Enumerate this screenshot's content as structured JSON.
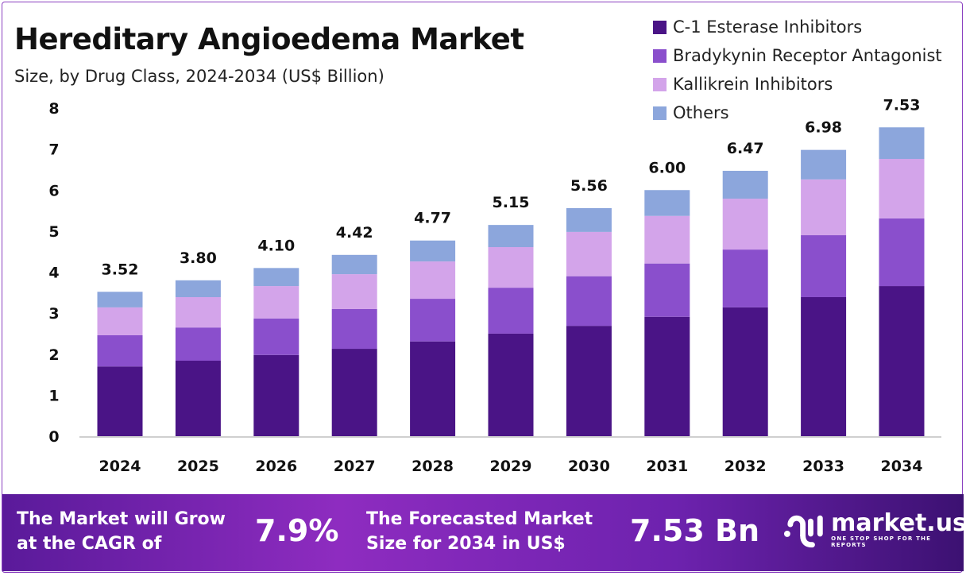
{
  "chart_data": {
    "type": "bar",
    "stacked": true,
    "title": "Hereditary Angioedema Market",
    "subtitle": "Size, by Drug Class, 2024-2034 (US$ Billion)",
    "categories": [
      "2024",
      "2025",
      "2026",
      "2027",
      "2028",
      "2029",
      "2030",
      "2031",
      "2032",
      "2033",
      "2034"
    ],
    "series": [
      {
        "name": "C-1 Esterase Inhibitors",
        "color": "#4a1486",
        "values": [
          1.7,
          1.84,
          1.98,
          2.13,
          2.31,
          2.5,
          2.69,
          2.91,
          3.14,
          3.39,
          3.66
        ]
      },
      {
        "name": "Bradykynin Receptor Antagonist",
        "color": "#8a4fcc",
        "values": [
          0.76,
          0.81,
          0.89,
          0.97,
          1.04,
          1.12,
          1.21,
          1.3,
          1.41,
          1.51,
          1.65
        ]
      },
      {
        "name": "Kallikrein Inhibitors",
        "color": "#d3a4ea",
        "values": [
          0.68,
          0.74,
          0.79,
          0.85,
          0.91,
          0.99,
          1.08,
          1.16,
          1.24,
          1.36,
          1.45
        ]
      },
      {
        "name": "Others",
        "color": "#8ca6dc",
        "values": [
          0.38,
          0.41,
          0.44,
          0.47,
          0.51,
          0.54,
          0.58,
          0.63,
          0.68,
          0.72,
          0.77
        ]
      }
    ],
    "totals": [
      "3.52",
      "3.80",
      "4.10",
      "4.42",
      "4.77",
      "5.15",
      "5.56",
      "6.00",
      "6.47",
      "6.98",
      "7.53"
    ],
    "ylim": [
      0,
      8
    ],
    "yticks": [
      "0",
      "1",
      "2",
      "3",
      "4",
      "5",
      "6",
      "7",
      "8"
    ],
    "grid": false,
    "legend": "top-right"
  },
  "banner": {
    "cagr_label": "The Market will Grow at the CAGR of",
    "cagr_value": "7.9%",
    "forecast_label": "The Forecasted Market Size for 2034 in US$",
    "forecast_value": "7.53 Bn",
    "logo_name": "market.us",
    "logo_tagline": "ONE STOP SHOP FOR THE REPORTS"
  }
}
